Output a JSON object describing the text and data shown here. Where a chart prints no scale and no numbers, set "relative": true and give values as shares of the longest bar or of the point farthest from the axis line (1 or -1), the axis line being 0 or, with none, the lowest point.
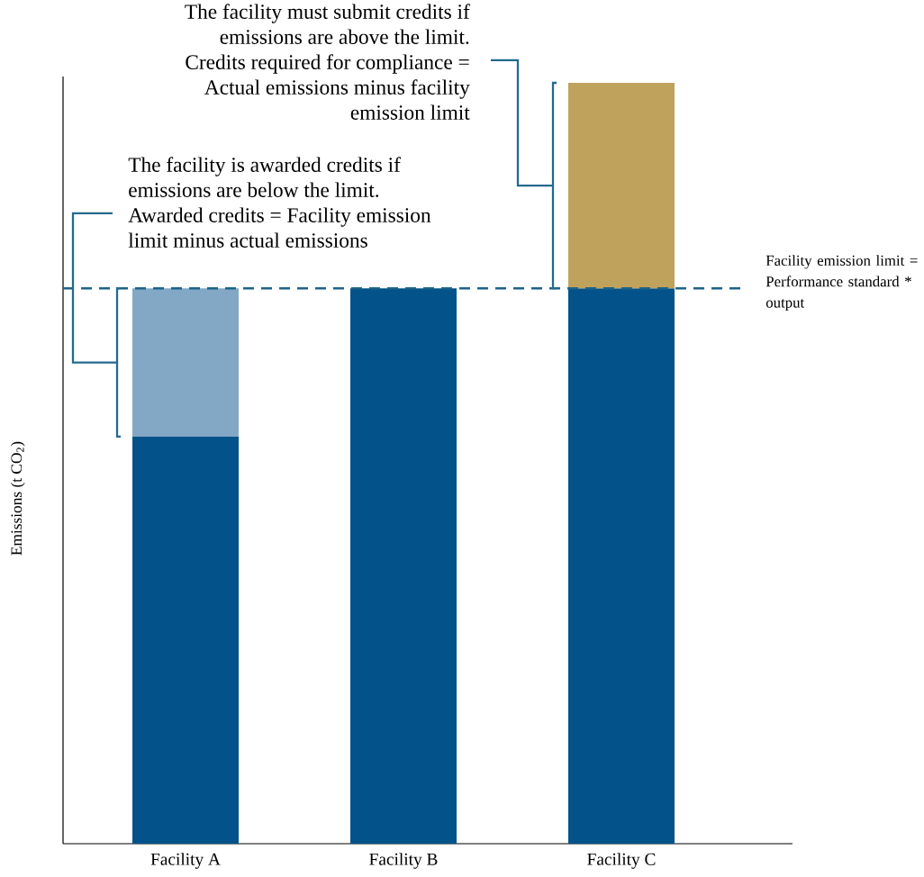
{
  "chart_data": {
    "type": "bar",
    "stacked": true,
    "relative": true,
    "ylabel": "Emissions (t CO$_{2}$)",
    "categories": [
      "Facility A",
      "Facility B",
      "Facility C"
    ],
    "series": [
      {
        "color": "#03528a",
        "values": [
          0.535,
          0.73,
          0.73
        ]
      },
      {
        "color": "#82a8c5",
        "values": [
          0.195,
          null,
          null
        ]
      },
      {
        "color": "#bfa25c",
        "values": [
          null,
          null,
          0.27
        ]
      }
    ],
    "ref_lines": [
      {
        "axis": "y",
        "value": 0.73,
        "label": "Facility emission limit = Performance standard * output",
        "color": "#1e6388",
        "line_style": "dashed"
      }
    ],
    "annotations": [
      "The facility must submit credits if emissions are above the limit. Credits required for compliance = Actual emissions minus facility emission limit",
      "The facility is awarded credits if emissions are below the limit. Awarded credits = Facility emission limit minus actual emissions"
    ]
  }
}
